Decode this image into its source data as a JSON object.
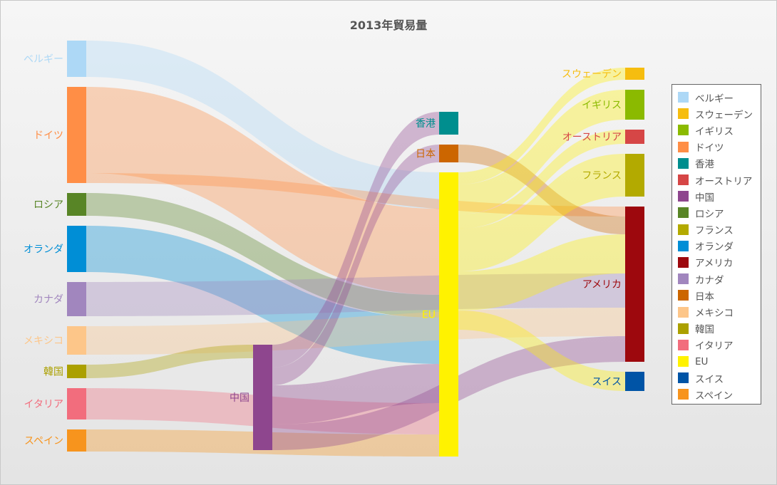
{
  "title": "2013年貿易量",
  "nodes": [
    {
      "name": "ベルギー",
      "color": "#add8f6"
    },
    {
      "name": "スウェーデン",
      "color": "#f6bd0f"
    },
    {
      "name": "イギリス",
      "color": "#8bba00"
    },
    {
      "name": "ドイツ",
      "color": "#ff8e46"
    },
    {
      "name": "香港",
      "color": "#008e8e"
    },
    {
      "name": "オーストリア",
      "color": "#d64646"
    },
    {
      "name": "中国",
      "color": "#8e468e"
    },
    {
      "name": "ロシア",
      "color": "#588526"
    },
    {
      "name": "フランス",
      "color": "#b3aa00"
    },
    {
      "name": "オランダ",
      "color": "#008ed6"
    },
    {
      "name": "アメリカ",
      "color": "#9d080d"
    },
    {
      "name": "カナダ",
      "color": "#a186be"
    },
    {
      "name": "日本",
      "color": "#cc6600"
    },
    {
      "name": "メキシコ",
      "color": "#fdc689"
    },
    {
      "name": "韓国",
      "color": "#aba000"
    },
    {
      "name": "イタリア",
      "color": "#f26d7d"
    },
    {
      "name": "EU",
      "color": "#fff200"
    },
    {
      "name": "スイス",
      "color": "#0054a6"
    },
    {
      "name": "スペイン",
      "color": "#f7941d"
    }
  ],
  "links": [
    {
      "source": "ベルギー",
      "target": "EU",
      "value": 51
    },
    {
      "source": "ドイツ",
      "target": "EU",
      "value": 121
    },
    {
      "source": "ドイツ",
      "target": "アメリカ",
      "value": 14
    },
    {
      "source": "ロシア",
      "target": "EU",
      "value": 32
    },
    {
      "source": "オランダ",
      "target": "EU",
      "value": 65
    },
    {
      "source": "カナダ",
      "target": "アメリカ",
      "value": 48
    },
    {
      "source": "メキシコ",
      "target": "アメリカ",
      "value": 40
    },
    {
      "source": "韓国",
      "target": "中国",
      "value": 19
    },
    {
      "source": "イタリア",
      "target": "EU",
      "value": 44
    },
    {
      "source": "スペイン",
      "target": "EU",
      "value": 31
    },
    {
      "source": "中国",
      "target": "香港",
      "value": 32
    },
    {
      "source": "中国",
      "target": "日本",
      "value": 25
    },
    {
      "source": "中国",
      "target": "EU",
      "value": 55
    },
    {
      "source": "中国",
      "target": "アメリカ",
      "value": 36
    },
    {
      "source": "日本",
      "target": "アメリカ",
      "value": 25
    },
    {
      "source": "EU",
      "target": "スウェーデン",
      "value": 17
    },
    {
      "source": "EU",
      "target": "イギリス",
      "value": 42
    },
    {
      "source": "EU",
      "target": "オーストリア",
      "value": 20
    },
    {
      "source": "EU",
      "target": "フランス",
      "value": 60
    },
    {
      "source": "EU",
      "target": "アメリカ",
      "value": 55
    },
    {
      "source": "EU",
      "target": "スイス",
      "value": 27
    }
  ]
}
